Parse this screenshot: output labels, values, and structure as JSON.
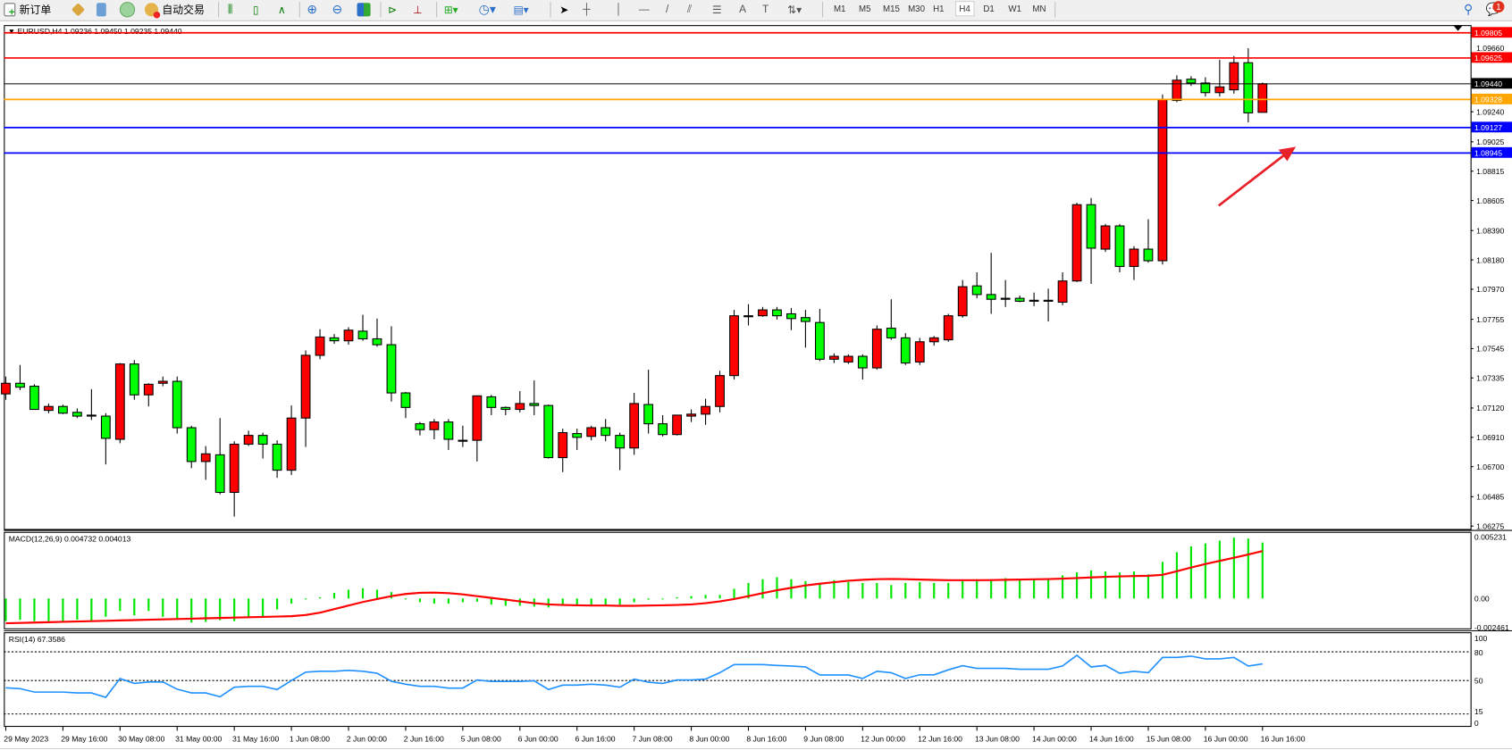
{
  "toolbar": {
    "new_order_label": "新订单",
    "auto_trading_label": "自动交易",
    "timeframes": [
      "M1",
      "M5",
      "M15",
      "M30",
      "H1",
      "H4",
      "D1",
      "W1",
      "MN"
    ],
    "selected_timeframe": "H4",
    "notification_count": "1",
    "icons": [
      "new-order-icon",
      "market-watch-icon",
      "navigator-icon",
      "signals-icon",
      "auto-trading-icon",
      "bar-chart-icon",
      "candlestick-icon",
      "line-chart-icon",
      "zoom-in-icon",
      "zoom-out-icon",
      "tile-windows-icon",
      "auto-scroll-icon",
      "chart-shift-icon",
      "indicators-icon",
      "periods-icon",
      "templates-icon",
      "cursor-icon",
      "crosshair-icon",
      "vertical-line-icon",
      "horizontal-line-icon",
      "trendline-icon",
      "equidistant-channel-icon",
      "fibonacci-icon",
      "text-icon",
      "text-label-icon",
      "arrows-icon",
      "search-icon",
      "notification-icon"
    ]
  },
  "chart": {
    "title": "EURUSD,H4  1.09236 1.09450 1.09235 1.09440",
    "colors": {
      "bull": "#ff0000",
      "bear": "#00ff00",
      "grid": "#000000",
      "macd_hist": "#00e600",
      "macd_signal": "#ff0000",
      "rsi": "#1e90ff",
      "arrow": "#e8202a"
    },
    "price_levels": [
      {
        "label": "1.09805",
        "price": 1.09805,
        "color": "#ff0000"
      },
      {
        "label": "1.09625",
        "price": 1.09625,
        "color": "#ff0000"
      },
      {
        "label": "1.09440",
        "price": 1.0944,
        "color": "#000000"
      },
      {
        "label": "1.09328",
        "price": 1.09328,
        "color": "#ffa500"
      },
      {
        "label": "1.09127",
        "price": 1.09127,
        "color": "#0000ff"
      },
      {
        "label": "1.08945",
        "price": 1.08945,
        "color": "#0000ff"
      }
    ],
    "price_axis_labels": [
      "1.09660",
      "1.09240",
      "1.09025",
      "1.08815",
      "1.08605",
      "1.08390",
      "1.08180",
      "1.07970",
      "1.07755",
      "1.07545",
      "1.07335",
      "1.07120",
      "1.06910",
      "1.06700",
      "1.06485",
      "1.06275"
    ],
    "price_axis_values": [
      1.0966,
      1.0924,
      1.09025,
      1.08815,
      1.08605,
      1.0839,
      1.0818,
      1.0797,
      1.07755,
      1.07545,
      1.07335,
      1.0712,
      1.0691,
      1.067,
      1.06485,
      1.06275
    ],
    "candles_ohlc": [
      [
        1.07221,
        1.07345,
        1.07179,
        1.07297
      ],
      [
        1.07297,
        1.07428,
        1.07248,
        1.07269
      ],
      [
        1.07276,
        1.0729,
        1.0711,
        1.0711
      ],
      [
        1.07103,
        1.07152,
        1.07083,
        1.07131
      ],
      [
        1.07131,
        1.07145,
        1.07076,
        1.07083
      ],
      [
        1.07089,
        1.07117,
        1.07048,
        1.07062
      ],
      [
        1.07069,
        1.07255,
        1.07034,
        1.07066
      ],
      [
        1.07062,
        1.07083,
        1.06716,
        1.06903
      ],
      [
        1.06896,
        1.07442,
        1.06868,
        1.07435
      ],
      [
        1.07435,
        1.07463,
        1.07179,
        1.07214
      ],
      [
        1.07214,
        1.07297,
        1.07131,
        1.0729
      ],
      [
        1.07297,
        1.07345,
        1.07276,
        1.07311
      ],
      [
        1.07311,
        1.07345,
        1.06937,
        1.06979
      ],
      [
        1.06979,
        1.06993,
        1.06689,
        1.06737
      ],
      [
        1.06737,
        1.06848,
        1.06606,
        1.06792
      ],
      [
        1.06785,
        1.07048,
        1.06502,
        1.06516
      ],
      [
        1.06516,
        1.06882,
        1.06343,
        1.06861
      ],
      [
        1.06861,
        1.06958,
        1.06848,
        1.06924
      ],
      [
        1.06924,
        1.06944,
        1.06758,
        1.06861
      ],
      [
        1.06861,
        1.06889,
        1.0662,
        1.06675
      ],
      [
        1.06675,
        1.07138,
        1.0664,
        1.07048
      ],
      [
        1.07048,
        1.07532,
        1.06841,
        1.07497
      ],
      [
        1.07497,
        1.07684,
        1.07469,
        1.07628
      ],
      [
        1.07622,
        1.07649,
        1.0758,
        1.07601
      ],
      [
        1.07601,
        1.07698,
        1.07573,
        1.07677
      ],
      [
        1.0767,
        1.07787,
        1.07601,
        1.07615
      ],
      [
        1.07615,
        1.0776,
        1.07559,
        1.07573
      ],
      [
        1.07573,
        1.07705,
        1.07166,
        1.07228
      ],
      [
        1.07228,
        1.07235,
        1.07048,
        1.07124
      ],
      [
        1.07007,
        1.0702,
        1.06924,
        1.06965
      ],
      [
        1.06965,
        1.07041,
        1.06896,
        1.0702
      ],
      [
        1.0702,
        1.07041,
        1.0682,
        1.06896
      ],
      [
        1.06889,
        1.06993,
        1.06841,
        1.06886
      ],
      [
        1.06889,
        1.07207,
        1.06737,
        1.07207
      ],
      [
        1.072,
        1.07214,
        1.07069,
        1.07124
      ],
      [
        1.07124,
        1.07131,
        1.07069,
        1.0711
      ],
      [
        1.0711,
        1.07241,
        1.07089,
        1.07152
      ],
      [
        1.07152,
        1.07317,
        1.07069,
        1.07138
      ],
      [
        1.07138,
        1.07145,
        1.06758,
        1.06765
      ],
      [
        1.06765,
        1.06972,
        1.06661,
        1.06944
      ],
      [
        1.06937,
        1.06972,
        1.0682,
        1.0691
      ],
      [
        1.06917,
        1.06993,
        1.06889,
        1.06979
      ],
      [
        1.06979,
        1.07041,
        1.06882,
        1.06924
      ],
      [
        1.06924,
        1.06944,
        1.06675,
        1.06834
      ],
      [
        1.06834,
        1.07228,
        1.06785,
        1.07152
      ],
      [
        1.07145,
        1.07394,
        1.06937,
        1.07007
      ],
      [
        1.07007,
        1.07069,
        1.06917,
        1.0693
      ],
      [
        1.0693,
        1.07069,
        1.06924,
        1.07069
      ],
      [
        1.07062,
        1.0711,
        1.0702,
        1.07076
      ],
      [
        1.07076,
        1.07186,
        1.07,
        1.07131
      ],
      [
        1.07131,
        1.07386,
        1.07089,
        1.07352
      ],
      [
        1.07352,
        1.07822,
        1.07324,
        1.0778
      ],
      [
        1.0778,
        1.07863,
        1.07711,
        1.0778
      ],
      [
        1.0778,
        1.07843,
        1.07773,
        1.07822
      ],
      [
        1.07822,
        1.07843,
        1.07753,
        1.0778
      ],
      [
        1.07794,
        1.07836,
        1.07677,
        1.0776
      ],
      [
        1.07767,
        1.07822,
        1.07552,
        1.07739
      ],
      [
        1.07732,
        1.07829,
        1.07456,
        1.07469
      ],
      [
        1.07469,
        1.07511,
        1.07442,
        1.0749
      ],
      [
        1.07449,
        1.07504,
        1.07435,
        1.0749
      ],
      [
        1.0749,
        1.07504,
        1.07324,
        1.07407
      ],
      [
        1.07407,
        1.07711,
        1.07394,
        1.07684
      ],
      [
        1.07691,
        1.07898,
        1.07608,
        1.07622
      ],
      [
        1.07622,
        1.07656,
        1.07428,
        1.07442
      ],
      [
        1.07449,
        1.07622,
        1.07428,
        1.07594
      ],
      [
        1.07594,
        1.07635,
        1.07566,
        1.07622
      ],
      [
        1.07608,
        1.07794,
        1.07594,
        1.0778
      ],
      [
        1.0778,
        1.08036,
        1.07767,
        1.07988
      ],
      [
        1.07994,
        1.08091,
        1.07905,
        1.07932
      ],
      [
        1.07932,
        1.0823,
        1.07794,
        1.07898
      ],
      [
        1.07905,
        1.08036,
        1.07843,
        1.07905
      ],
      [
        1.07905,
        1.07925,
        1.07877,
        1.07884
      ],
      [
        1.07891,
        1.07946,
        1.07849,
        1.07891
      ],
      [
        1.07891,
        1.07974,
        1.07739,
        1.07888
      ],
      [
        1.07877,
        1.08091,
        1.07856,
        1.08029
      ],
      [
        1.08029,
        1.08589,
        1.08022,
        1.08575
      ],
      [
        1.08575,
        1.08623,
        1.08008,
        1.08264
      ],
      [
        1.08257,
        1.08437,
        1.08237,
        1.08423
      ],
      [
        1.08423,
        1.08437,
        1.08091,
        1.08133
      ],
      [
        1.08133,
        1.08278,
        1.08036,
        1.08257
      ],
      [
        1.08257,
        1.08471,
        1.0816,
        1.08174
      ],
      [
        1.08174,
        1.09363,
        1.08147,
        1.09328
      ],
      [
        1.09321,
        1.09501,
        1.09308,
        1.09466
      ],
      [
        1.09473,
        1.09494,
        1.09425,
        1.09446
      ],
      [
        1.09446,
        1.09487,
        1.09349,
        1.09377
      ],
      [
        1.09377,
        1.09612,
        1.09349,
        1.09418
      ],
      [
        1.09397,
        1.09639,
        1.0937,
        1.09591
      ],
      [
        1.09591,
        1.09695,
        1.09164,
        1.09232
      ],
      [
        1.09236,
        1.0945,
        1.09235,
        1.0944
      ]
    ],
    "time_labels": [
      "29 May 2023",
      "29 May 16:00",
      "30 May 08:00",
      "31 May 00:00",
      "31 May 16:00",
      "1 Jun 08:00",
      "2 Jun 00:00",
      "2 Jun 16:00",
      "5 Jun 08:00",
      "6 Jun 00:00",
      "6 Jun 16:00",
      "7 Jun 08:00",
      "8 Jun 00:00",
      "8 Jun 16:00",
      "9 Jun 08:00",
      "12 Jun 00:00",
      "12 Jun 16:00",
      "13 Jun 08:00",
      "14 Jun 00:00",
      "14 Jun 16:00",
      "15 Jun 08:00",
      "16 Jun 00:00",
      "16 Jun 16:00"
    ]
  },
  "macd": {
    "label": "MACD(12,26,9) 0.004732 0.004013",
    "axis_labels": [
      "0.005231",
      "0.00",
      "-0.002461"
    ],
    "axis_values": [
      0.005231,
      0,
      -0.002461
    ],
    "histogram": [
      -0.00192,
      -0.0018,
      -0.00192,
      -0.00192,
      -0.00192,
      -0.0018,
      -0.00192,
      -0.00155,
      -0.00106,
      -0.00143,
      -0.00106,
      -0.00155,
      -0.00167,
      -0.00204,
      -0.00199,
      -0.00184,
      -0.00192,
      -0.00167,
      -0.00155,
      -0.00093,
      -0.00044,
      0.0,
      0.0001,
      0.00047,
      0.00074,
      0.00086,
      0.00074,
      0.00054,
      -7e-05,
      -0.00032,
      -0.00044,
      -0.00044,
      -0.00032,
      -0.00027,
      -0.00052,
      -0.00062,
      -0.00062,
      -0.00069,
      -0.00076,
      -0.00062,
      -0.00052,
      -0.00052,
      -0.00062,
      -0.00052,
      -0.00032,
      -0.0001,
      0.0,
      0.0001,
      0.0002,
      0.0003,
      0.0003,
      0.00082,
      0.00131,
      0.00163,
      0.0018,
      0.00163,
      0.00147,
      0.00131,
      0.00155,
      0.00139,
      0.00131,
      0.00131,
      0.00114,
      0.00131,
      0.00139,
      0.00131,
      0.00131,
      0.00147,
      0.00163,
      0.00163,
      0.00172,
      0.00163,
      0.00163,
      0.00163,
      0.00196,
      0.00221,
      0.00237,
      0.00229,
      0.00221,
      0.00229,
      0.00204,
      0.0031,
      0.00392,
      0.00441,
      0.00466,
      0.0049,
      0.00515,
      0.00507,
      0.004732
    ],
    "signal": [
      -0.0021,
      -0.00207,
      -0.00204,
      -0.00201,
      -0.00198,
      -0.00195,
      -0.00192,
      -0.00189,
      -0.00186,
      -0.00183,
      -0.0018,
      -0.00177,
      -0.00174,
      -0.00171,
      -0.00168,
      -0.00165,
      -0.00162,
      -0.00159,
      -0.00156,
      -0.00153,
      -0.0015,
      -0.0014,
      -0.0012,
      -0.0009,
      -0.0006,
      -0.0003,
      -5e-05,
      0.0002,
      0.00038,
      0.00048,
      0.0005,
      0.00045,
      0.00035,
      0.0002,
      5e-05,
      -0.0001,
      -0.00025,
      -0.0004,
      -0.0005,
      -0.00055,
      -0.00058,
      -0.0006,
      -0.0006,
      -0.00062,
      -0.00062,
      -0.0006,
      -0.00058,
      -0.00055,
      -0.0005,
      -0.0004,
      -0.00025,
      -5e-05,
      0.0002,
      0.00045,
      0.0007,
      0.0009,
      0.0011,
      0.00125,
      0.00138,
      0.0015,
      0.00158,
      0.00163,
      0.00165,
      0.00163,
      0.0016,
      0.00157,
      0.00155,
      0.00155,
      0.00155,
      0.00156,
      0.00158,
      0.0016,
      0.00162,
      0.00164,
      0.00168,
      0.00173,
      0.00178,
      0.00183,
      0.00187,
      0.0019,
      0.00192,
      0.002,
      0.0023,
      0.00262,
      0.00292,
      0.00318,
      0.00345,
      0.00372,
      0.004013
    ]
  },
  "rsi": {
    "label": "RSI(14) 67.3586",
    "axis_labels": [
      "100",
      "80",
      "50",
      "15",
      "0"
    ],
    "axis_values": [
      100,
      80,
      50,
      15,
      0
    ],
    "levels": [
      80,
      50,
      15
    ],
    "values": [
      42.4,
      41.5,
      37.9,
      37.9,
      37.9,
      37.0,
      37.0,
      32.4,
      52.1,
      47.0,
      48.5,
      48.5,
      40.9,
      37.0,
      37.0,
      33.0,
      43.0,
      43.9,
      43.9,
      40.6,
      50.0,
      58.8,
      59.7,
      59.7,
      60.6,
      59.7,
      57.6,
      49.1,
      46.1,
      43.9,
      43.9,
      42.1,
      42.1,
      50.6,
      49.1,
      49.1,
      49.1,
      49.7,
      40.6,
      45.2,
      45.2,
      46.1,
      45.2,
      43.0,
      51.5,
      48.2,
      47.0,
      50.6,
      50.6,
      51.5,
      58.2,
      66.7,
      66.7,
      66.7,
      65.8,
      65.2,
      64.2,
      55.8,
      55.8,
      55.8,
      52.1,
      59.7,
      58.2,
      52.1,
      56.0,
      56.0,
      61.2,
      65.5,
      62.7,
      62.7,
      62.7,
      61.8,
      61.8,
      61.8,
      65.2,
      76.4,
      64.2,
      65.8,
      57.6,
      59.7,
      58.2,
      74.2,
      74.2,
      75.5,
      72.7,
      72.7,
      74.2,
      65.2,
      67.3586
    ]
  }
}
